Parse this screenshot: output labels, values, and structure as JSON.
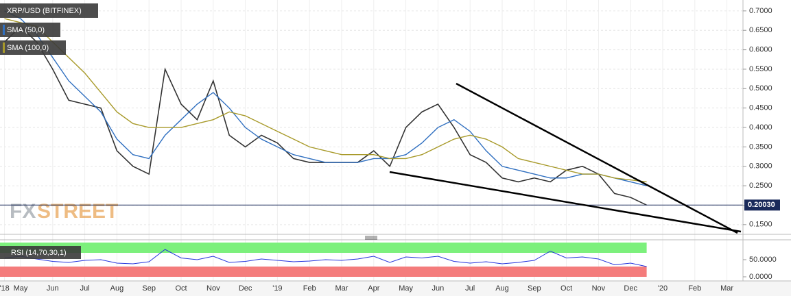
{
  "chart_data": {
    "type": "line",
    "title": "XRP/USD (BITFINEX)",
    "watermark": [
      "FX",
      "STREET"
    ],
    "categories": [
      "'18",
      "May",
      null,
      "Jun",
      null,
      "Jul",
      null,
      "Aug",
      null,
      "Sep",
      null,
      "Oct",
      null,
      "Nov",
      null,
      "Dec",
      null,
      "'19",
      null,
      "Feb",
      null,
      "Mar",
      null,
      "Apr",
      null,
      "May",
      null,
      "Jun",
      null,
      "Jul",
      null,
      "Aug",
      null,
      "Sep",
      null,
      "Oct",
      null,
      "Nov",
      null,
      "Dec",
      null,
      "'20",
      null,
      "Feb",
      null,
      "Mar"
    ],
    "series": [
      {
        "name": "XRP/USD (BITFINEX)",
        "color": "#333333",
        "values": [
          0.62,
          0.66,
          0.62,
          0.55,
          0.47,
          0.46,
          0.45,
          0.34,
          0.3,
          0.28,
          0.55,
          0.46,
          0.42,
          0.52,
          0.38,
          0.35,
          0.38,
          0.36,
          0.32,
          0.31,
          0.31,
          0.31,
          0.31,
          0.34,
          0.3,
          0.4,
          0.44,
          0.46,
          0.4,
          0.33,
          0.31,
          0.27,
          0.26,
          0.27,
          0.26,
          0.29,
          0.3,
          0.28,
          0.23,
          0.22,
          0.2003,
          null,
          null,
          null,
          null,
          null
        ]
      },
      {
        "name": "SMA (50,0)",
        "color": "#2f6fc0",
        "values": [
          0.7,
          0.68,
          0.64,
          0.58,
          0.52,
          0.48,
          0.44,
          0.37,
          0.33,
          0.32,
          0.38,
          0.42,
          0.46,
          0.49,
          0.45,
          0.4,
          0.37,
          0.35,
          0.33,
          0.32,
          0.31,
          0.31,
          0.31,
          0.32,
          0.32,
          0.33,
          0.36,
          0.4,
          0.42,
          0.39,
          0.34,
          0.3,
          0.29,
          0.28,
          0.27,
          0.27,
          0.28,
          0.28,
          0.27,
          0.26,
          0.25,
          null,
          null,
          null,
          null,
          null
        ]
      },
      {
        "name": "SMA (100,0)",
        "color": "#a89a2a",
        "values": [
          0.68,
          0.67,
          0.66,
          0.62,
          0.58,
          0.54,
          0.49,
          0.44,
          0.41,
          0.4,
          0.4,
          0.4,
          0.41,
          0.42,
          0.44,
          0.43,
          0.41,
          0.39,
          0.37,
          0.35,
          0.34,
          0.33,
          0.33,
          0.33,
          0.32,
          0.32,
          0.33,
          0.35,
          0.37,
          0.38,
          0.37,
          0.35,
          0.32,
          0.31,
          0.3,
          0.29,
          0.28,
          0.28,
          0.27,
          0.265,
          0.26,
          null,
          null,
          null,
          null,
          null
        ]
      }
    ],
    "last_price": {
      "value": 0.2003,
      "label": "0.20030"
    },
    "ylim": [
      0.125,
      0.728
    ],
    "yticks": [
      {
        "value": 0.7,
        "label": "0.7000"
      },
      {
        "value": 0.65,
        "label": "0.6500"
      },
      {
        "value": 0.6,
        "label": "0.6000"
      },
      {
        "value": 0.55,
        "label": "0.5500"
      },
      {
        "value": 0.5,
        "label": "0.5000"
      },
      {
        "value": 0.45,
        "label": "0.4500"
      },
      {
        "value": 0.4,
        "label": "0.4000"
      },
      {
        "value": 0.35,
        "label": "0.3500"
      },
      {
        "value": 0.3,
        "label": "0.3000"
      },
      {
        "value": 0.25,
        "label": "0.2500"
      },
      {
        "value": 0.2,
        "label": "0.2000"
      },
      {
        "value": 0.15,
        "label": "0.1500"
      }
    ],
    "grid": true,
    "rsi": {
      "name": "RSI (14,70,30,1)",
      "color": "#2233dd",
      "values": [
        55,
        60,
        52,
        45,
        42,
        48,
        50,
        40,
        38,
        44,
        80,
        55,
        50,
        60,
        42,
        45,
        52,
        48,
        44,
        46,
        50,
        48,
        52,
        60,
        42,
        58,
        55,
        60,
        45,
        40,
        44,
        38,
        42,
        48,
        75,
        55,
        58,
        52,
        35,
        40,
        30
      ],
      "ylim": [
        0,
        100
      ],
      "yticks": [
        {
          "value": 50,
          "label": "50.0000"
        },
        {
          "value": 0,
          "label": "0.0000"
        }
      ],
      "levels": [
        30,
        70
      ]
    }
  }
}
